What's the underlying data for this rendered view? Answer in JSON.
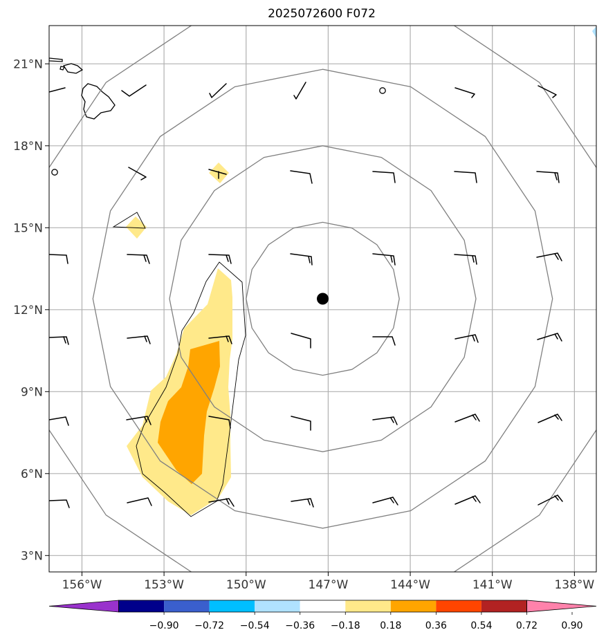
{
  "title": "2025072600 F072",
  "map": {
    "lon_range": [
      -157.2,
      -137.2
    ],
    "lat_range": [
      2.4,
      22.4
    ],
    "lon_ticks": [
      {
        "value": -156,
        "label": "156°W"
      },
      {
        "value": -153,
        "label": "153°W"
      },
      {
        "value": -150,
        "label": "150°W"
      },
      {
        "value": -147,
        "label": "147°W"
      },
      {
        "value": -144,
        "label": "144°W"
      },
      {
        "value": -141,
        "label": "141°W"
      },
      {
        "value": -138,
        "label": "138°W"
      }
    ],
    "lat_ticks": [
      {
        "value": 3,
        "label": "3°N"
      },
      {
        "value": 6,
        "label": "6°N"
      },
      {
        "value": 9,
        "label": "9°N"
      },
      {
        "value": 12,
        "label": "12°N"
      },
      {
        "value": 15,
        "label": "15°N"
      },
      {
        "value": 18,
        "label": "18°N"
      },
      {
        "value": 21,
        "label": "21°N"
      }
    ],
    "gridlines": true,
    "center_marker": {
      "lon": -147.2,
      "lat": 12.4
    },
    "range_ring_radii_deg": [
      2.8,
      5.6,
      8.4,
      11.2
    ],
    "fill_colors": {
      "light": "#ffe98a",
      "orange": "#ffa500"
    },
    "land_color": "#ffffff",
    "ring_color": "#808080",
    "grid_color": "#b0b0b0"
  },
  "colorbar": {
    "ticks": [
      "−0.90",
      "−0.72",
      "−0.54",
      "−0.36",
      "−0.18",
      "0.18",
      "0.36",
      "0.54",
      "0.72",
      "0.90"
    ],
    "colors": [
      "#9932cc",
      "#00008b",
      "#3a5fcd",
      "#00bfff",
      "#b0e2ff",
      "#ffffff",
      "#ffe98a",
      "#ffa500",
      "#ff4500",
      "#b22222",
      "#ff82ab"
    ]
  }
}
